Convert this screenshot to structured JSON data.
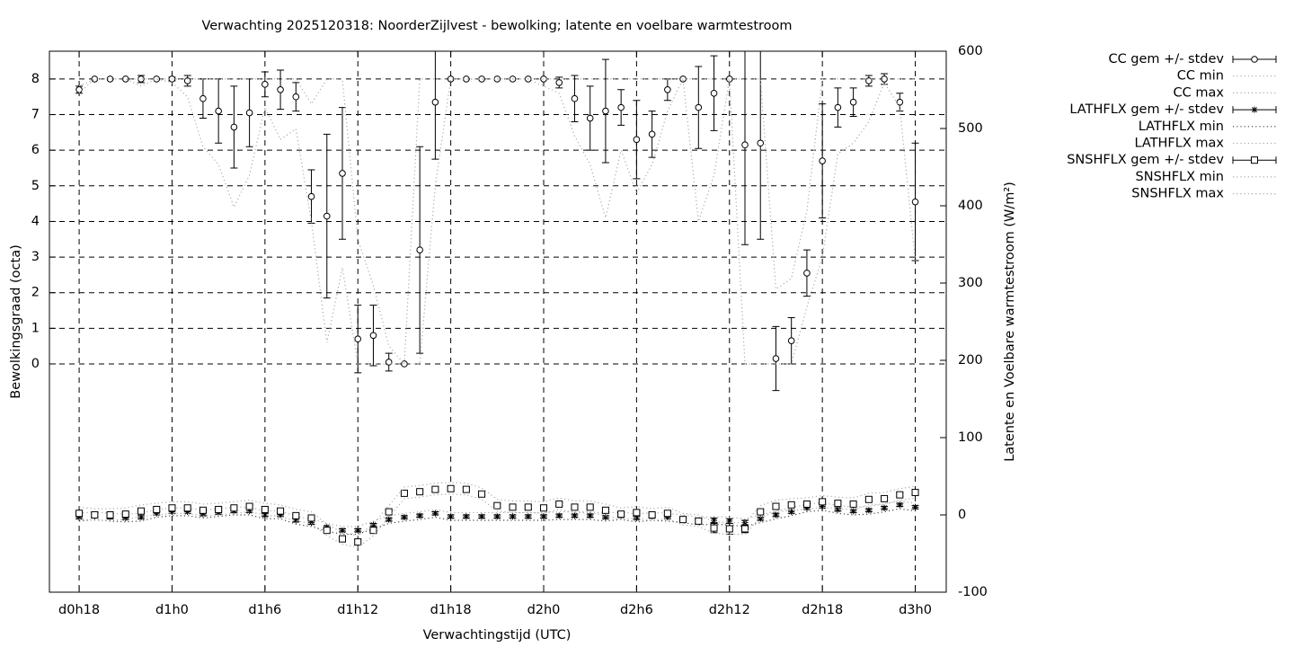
{
  "chart_data": {
    "type": "errorbar",
    "title": "Verwachting 2025120318: NoorderZijlvest - bewolking; latente en voelbare warmtestroom",
    "xlabel": "Verwachtingstijd (UTC)",
    "ylabel": "Bewolkingsgraad (octa)",
    "y2label": "Latente en Voelbare warmtestroom (W/m²)",
    "grid": true,
    "legend": "outside-right-top",
    "xlim": [
      16.08,
      74
    ],
    "ylim": [
      -6.41,
      8.78
    ],
    "y2lim": [
      -100,
      600
    ],
    "xticks": [
      {
        "value": 18,
        "label": "d0h18"
      },
      {
        "value": 24,
        "label": "d1h0"
      },
      {
        "value": 30,
        "label": "d1h6"
      },
      {
        "value": 36,
        "label": "d1h12"
      },
      {
        "value": 42,
        "label": "d1h18"
      },
      {
        "value": 48,
        "label": "d2h0"
      },
      {
        "value": 54,
        "label": "d2h6"
      },
      {
        "value": 60,
        "label": "d2h12"
      },
      {
        "value": 66,
        "label": "d2h18"
      },
      {
        "value": 72,
        "label": "d3h0"
      }
    ],
    "yticks": [
      0,
      1,
      2,
      3,
      4,
      5,
      6,
      7,
      8
    ],
    "y2ticks": [
      -100,
      0,
      100,
      200,
      300,
      400,
      500,
      600
    ],
    "x": [
      18,
      19,
      20,
      21,
      22,
      23,
      24,
      25,
      26,
      27,
      28,
      29,
      30,
      31,
      32,
      33,
      34,
      35,
      36,
      37,
      38,
      39,
      40,
      41,
      42,
      43,
      44,
      45,
      46,
      47,
      48,
      49,
      50,
      51,
      52,
      53,
      54,
      55,
      56,
      57,
      58,
      59,
      60,
      61,
      62,
      63,
      64,
      65,
      66,
      67,
      68,
      69,
      70,
      71,
      72
    ],
    "series": [
      {
        "name": "CC gem +/- stdev",
        "style": "errorbar",
        "marker": "circle",
        "color": "#000000",
        "values": [
          7.7,
          8,
          8,
          8,
          8,
          8,
          8,
          7.95,
          7.45,
          7.1,
          6.65,
          7.05,
          7.85,
          7.7,
          7.5,
          4.7,
          4.15,
          5.35,
          0.7,
          0.8,
          0.05,
          0,
          3.2,
          7.35,
          8,
          8,
          8,
          8,
          8,
          8,
          8,
          7.9,
          7.45,
          6.9,
          7.1,
          7.2,
          6.3,
          6.45,
          7.7,
          8,
          7.2,
          7.6,
          8,
          6.15,
          6.2,
          0.15,
          0.65,
          2.55,
          5.7,
          7.2,
          7.35,
          7.95,
          8,
          7.35,
          4.55
        ],
        "errors": [
          0.1,
          0,
          0,
          0,
          0.1,
          0,
          0.05,
          0.15,
          0.55,
          0.9,
          1.15,
          0.95,
          0.35,
          0.55,
          0.4,
          0.75,
          2.3,
          1.85,
          0.95,
          0.85,
          0.25,
          0,
          2.9,
          1.6,
          0,
          0,
          0,
          0,
          0,
          0,
          0,
          0.15,
          0.65,
          0.9,
          1.45,
          0.5,
          1.1,
          0.65,
          0.3,
          0,
          1.15,
          1.05,
          0,
          2.8,
          2.7,
          0.9,
          0.65,
          0.65,
          1.6,
          0.55,
          0.4,
          0.15,
          0.15,
          0.25,
          1.65
        ]
      },
      {
        "name": "CC min",
        "style": "dotted",
        "color": "#aaaaaa",
        "values": [
          7.6,
          8,
          8,
          8,
          7.8,
          8,
          7.9,
          7.5,
          6.1,
          5.6,
          4.4,
          5.3,
          7.2,
          6.3,
          6.6,
          4.0,
          0.6,
          2.7,
          0,
          0,
          0,
          0,
          0,
          5.0,
          8,
          8,
          8,
          8,
          8,
          8,
          7.8,
          7.6,
          6.4,
          5.6,
          4.1,
          6.0,
          4.8,
          5.6,
          7.1,
          8,
          4.0,
          5.3,
          8,
          0,
          0,
          0,
          0,
          1.6,
          3.0,
          5.9,
          6.2,
          6.8,
          7.9,
          7.2,
          2.9
        ]
      },
      {
        "name": "CC max",
        "style": "dotted",
        "color": "#aaaaaa",
        "values": [
          7.8,
          8,
          8,
          8,
          8,
          8,
          8,
          8,
          8,
          8,
          8,
          8,
          8,
          8,
          8,
          7.3,
          8,
          8,
          3.5,
          2.2,
          0.5,
          0,
          8,
          8,
          8,
          8,
          8,
          8,
          8,
          8,
          8,
          8,
          8,
          8,
          8,
          8,
          8,
          8,
          8,
          8,
          8,
          8,
          8,
          8,
          8,
          2.1,
          2.4,
          4.3,
          8,
          8,
          8,
          8,
          8,
          8,
          8
        ]
      },
      {
        "name": "LATHFLX gem +/- stdev",
        "style": "errorbar",
        "marker": "asterisk",
        "color": "#000000",
        "axis": "y2",
        "values": [
          -3,
          -1,
          -3,
          -4,
          -3,
          2,
          4,
          4,
          1,
          3,
          5,
          5,
          0,
          0,
          -7,
          -10,
          -16,
          -20,
          -20,
          -13,
          -6,
          -3,
          -1,
          2,
          -2,
          -2,
          -2,
          -2,
          -2,
          -2,
          -2,
          -1,
          -1,
          -1,
          -3,
          -1,
          -4,
          -2,
          -3,
          -5,
          -8,
          -7,
          -8,
          -10,
          -5,
          0,
          4,
          9,
          11,
          7,
          5,
          6,
          9,
          13,
          10
        ],
        "errors": [
          2,
          2,
          2,
          2,
          2,
          2,
          2,
          2,
          2,
          2,
          2,
          2,
          2,
          2,
          2,
          2,
          2,
          2,
          2,
          2,
          2,
          2,
          2,
          2,
          2,
          2,
          2,
          2,
          2,
          2,
          2,
          2,
          2,
          2,
          2,
          2,
          2,
          2,
          2,
          2,
          3,
          3,
          3,
          3,
          2,
          2,
          2,
          2,
          2,
          2,
          2,
          2,
          2,
          2,
          2
        ]
      },
      {
        "name": "LATHFLX min",
        "style": "dotted",
        "color": "#444444",
        "axis": "y2",
        "values": [
          -8,
          -6,
          -8,
          -9,
          -8,
          -3,
          -1,
          -1,
          -4,
          -2,
          0,
          0,
          -5,
          -5,
          -12,
          -15,
          -21,
          -25,
          -25,
          -18,
          -11,
          -8,
          -6,
          -3,
          -7,
          -7,
          -7,
          -7,
          -7,
          -7,
          -7,
          -6,
          -6,
          -6,
          -8,
          -6,
          -9,
          -7,
          -8,
          -10,
          -13,
          -12,
          -13,
          -15,
          -10,
          -5,
          -1,
          4,
          6,
          2,
          0,
          1,
          4,
          8,
          5
        ]
      },
      {
        "name": "LATHFLX max",
        "style": "dotted",
        "color": "#aaaaaa",
        "axis": "y2",
        "values": [
          2,
          4,
          2,
          1,
          2,
          7,
          9,
          9,
          6,
          8,
          10,
          10,
          5,
          5,
          -2,
          -5,
          -11,
          -15,
          -15,
          -8,
          -1,
          2,
          4,
          7,
          3,
          3,
          3,
          3,
          3,
          3,
          3,
          4,
          4,
          4,
          2,
          4,
          1,
          3,
          2,
          0,
          -3,
          -2,
          -3,
          -5,
          0,
          5,
          9,
          14,
          16,
          12,
          10,
          11,
          14,
          18,
          15
        ]
      },
      {
        "name": "SNSHFLX gem +/- stdev",
        "style": "errorbar",
        "marker": "square",
        "color": "#000000",
        "axis": "y2",
        "values": [
          2,
          0,
          0,
          1,
          5,
          7,
          9,
          9,
          6,
          7,
          9,
          11,
          7,
          5,
          -1,
          -4,
          -20,
          -31,
          -35,
          -20,
          4,
          28,
          30,
          33,
          34,
          33,
          27,
          12,
          10,
          10,
          9,
          14,
          10,
          10,
          6,
          1,
          3,
          0,
          2,
          -6,
          -8,
          -17,
          -18,
          -18,
          4,
          11,
          13,
          14,
          17,
          15,
          14,
          20,
          21,
          26,
          29
        ],
        "errors": [
          2,
          2,
          2,
          2,
          2,
          2,
          2,
          2,
          2,
          2,
          2,
          2,
          2,
          2,
          2,
          2,
          3,
          3,
          3,
          3,
          2,
          2,
          2,
          2,
          2,
          2,
          2,
          2,
          2,
          2,
          2,
          2,
          2,
          2,
          2,
          2,
          2,
          2,
          2,
          2,
          3,
          6,
          7,
          5,
          2,
          2,
          2,
          2,
          2,
          2,
          2,
          2,
          2,
          2,
          3
        ]
      },
      {
        "name": "SNSHFLX min",
        "style": "dotted",
        "color": "#aaaaaa",
        "axis": "y2",
        "values": [
          -5,
          -7,
          -7,
          -6,
          -2,
          0,
          2,
          2,
          -1,
          0,
          2,
          4,
          0,
          -2,
          -8,
          -11,
          -27,
          -38,
          -42,
          -27,
          -3,
          21,
          23,
          26,
          27,
          26,
          20,
          5,
          3,
          3,
          2,
          7,
          3,
          3,
          -1,
          -6,
          -4,
          -7,
          -5,
          -13,
          -15,
          -24,
          -25,
          -25,
          -3,
          4,
          6,
          7,
          10,
          8,
          7,
          13,
          14,
          19,
          22
        ]
      },
      {
        "name": "SNSHFLX max",
        "style": "dotted",
        "color": "#aaaaaa",
        "axis": "y2",
        "values": [
          10,
          8,
          8,
          9,
          13,
          15,
          17,
          17,
          14,
          15,
          17,
          19,
          15,
          13,
          7,
          4,
          -12,
          -23,
          -27,
          -12,
          12,
          36,
          38,
          41,
          42,
          41,
          35,
          20,
          18,
          18,
          17,
          22,
          18,
          18,
          14,
          9,
          11,
          8,
          10,
          2,
          0,
          -9,
          -10,
          -10,
          12,
          19,
          21,
          22,
          25,
          23,
          22,
          28,
          29,
          34,
          37
        ]
      }
    ]
  }
}
